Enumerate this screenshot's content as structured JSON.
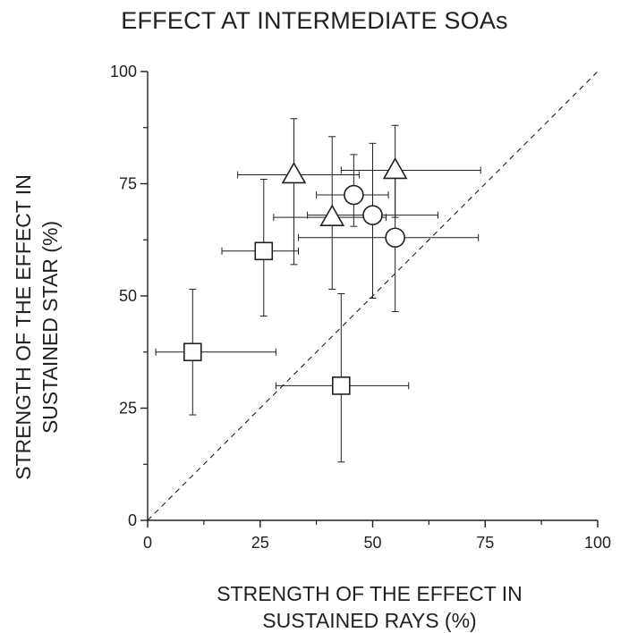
{
  "chart_data": {
    "type": "scatter",
    "title": "EFFECT AT INTERMEDIATE SOAs",
    "xlabel_lines": [
      "STRENGTH OF THE EFFECT IN",
      "SUSTAINED RAYS (%)"
    ],
    "ylabel_lines": [
      "STRENGTH OF THE EFFECT IN",
      "SUSTAINED STAR (%)"
    ],
    "xlim": [
      0,
      100
    ],
    "ylim": [
      0,
      100
    ],
    "xticks": [
      0,
      25,
      50,
      75,
      100
    ],
    "yticks": [
      0,
      25,
      50,
      75,
      100
    ],
    "reference_line": "diagonal-dashed",
    "grid": false,
    "series": [
      {
        "marker": "square",
        "points": [
          {
            "x": 10,
            "y": 37.5,
            "xerr": [
              1.8,
              28.5
            ],
            "yerr": [
              23.5,
              51.5
            ]
          },
          {
            "x": 25.8,
            "y": 60,
            "xerr": [
              16.5,
              33.5
            ],
            "yerr": [
              45.5,
              76
            ]
          },
          {
            "x": 43,
            "y": 30,
            "xerr": [
              28.5,
              58
            ],
            "yerr": [
              13,
              50.5
            ]
          }
        ]
      },
      {
        "marker": "circle",
        "points": [
          {
            "x": 45.8,
            "y": 72.5,
            "xerr": [
              37.5,
              53.5
            ],
            "yerr": [
              65.5,
              81.5
            ]
          },
          {
            "x": 50,
            "y": 68,
            "xerr": [
              35.5,
              64.5
            ],
            "yerr": [
              49.5,
              84
            ]
          },
          {
            "x": 55,
            "y": 63,
            "xerr": [
              33.5,
              73.5
            ],
            "yerr": [
              46.5,
              79
            ]
          }
        ]
      },
      {
        "marker": "triangle",
        "points": [
          {
            "x": 32.5,
            "y": 77,
            "xerr": [
              20,
              47
            ],
            "yerr": [
              57,
              89.5
            ]
          },
          {
            "x": 41,
            "y": 67.5,
            "xerr": [
              28,
              53
            ],
            "yerr": [
              51.5,
              85.5
            ]
          },
          {
            "x": 55,
            "y": 78,
            "xerr": [
              43,
              74
            ],
            "yerr": [
              67.5,
              88
            ]
          }
        ]
      }
    ]
  }
}
